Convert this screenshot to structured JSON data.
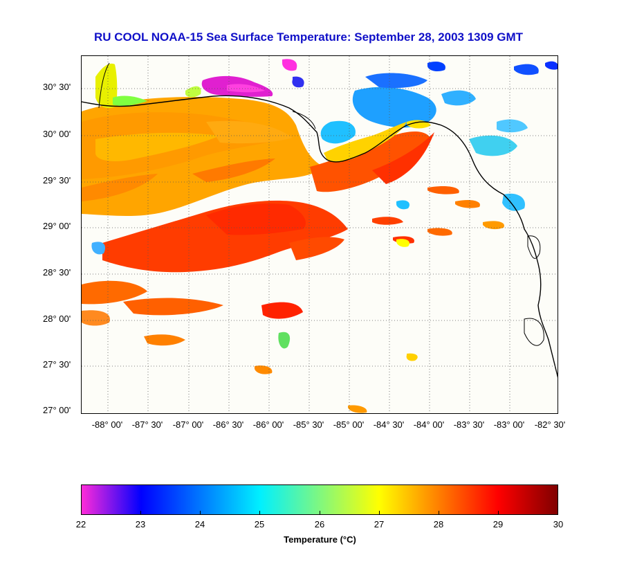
{
  "title": "RU COOL  NOAA-15  Sea Surface Temperature:  September 28, 2003 1309 GMT",
  "map": {
    "lat_labels": [
      "30° 30'",
      "30° 00'",
      "29° 30'",
      "29° 00'",
      "28° 30'",
      "28° 00'",
      "27° 30'",
      "27° 00'"
    ],
    "lon_labels": [
      "-88° 00'",
      "-87° 30'",
      "-87° 00'",
      "-86° 30'",
      "-86° 00'",
      "-85° 30'",
      "-85° 00'",
      "-84° 30'",
      "-84° 00'",
      "-83° 30'",
      "-83° 00'",
      "-82° 30'"
    ],
    "colors": {
      "cloud": "#fdfdf8",
      "land_line": "#000000",
      "grid": "#555555"
    }
  },
  "colorbar": {
    "label": "Temperature (°C)",
    "ticks": [
      "22",
      "23",
      "24",
      "25",
      "26",
      "27",
      "28",
      "29",
      "30"
    ],
    "range": [
      22,
      30
    ],
    "stops": [
      "#ff2bd8",
      "#0000ff",
      "#00f0ff",
      "#ffff00",
      "#ff0000",
      "#800000"
    ]
  }
}
